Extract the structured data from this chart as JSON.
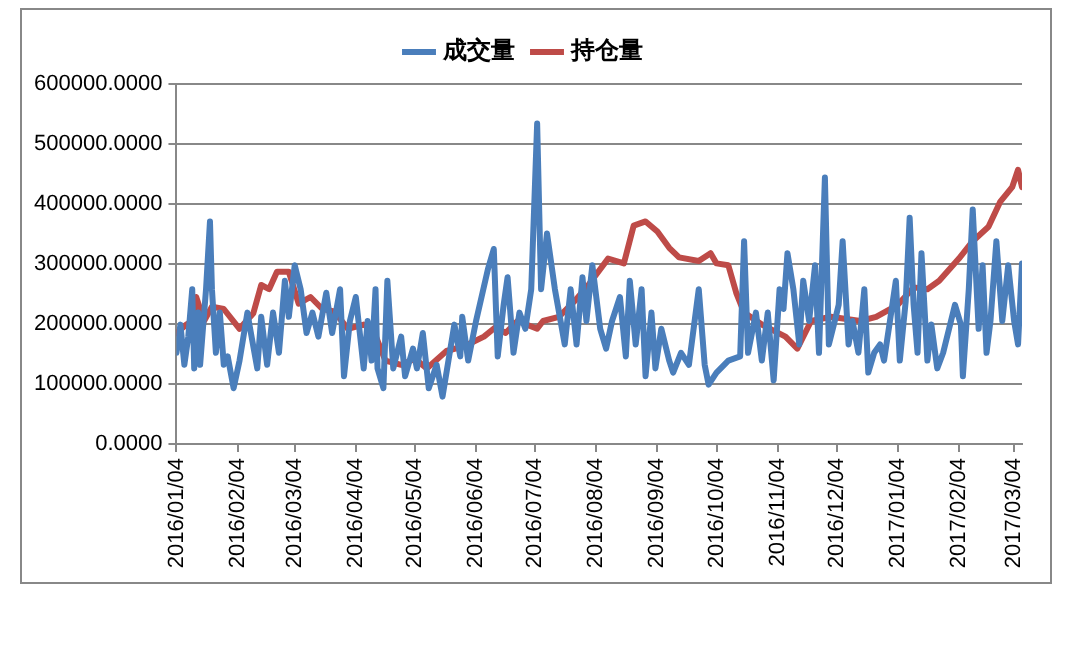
{
  "chart_data": {
    "type": "line",
    "ylim": [
      0,
      600000
    ],
    "yticks": [
      {
        "value": 0,
        "label": "0.0000"
      },
      {
        "value": 100000,
        "label": "100000.0000"
      },
      {
        "value": 200000,
        "label": "200000.0000"
      },
      {
        "value": 300000,
        "label": "300000.0000"
      },
      {
        "value": 400000,
        "label": "400000.0000"
      },
      {
        "value": 500000,
        "label": "500000.0000"
      },
      {
        "value": 600000,
        "label": "600000.0000"
      }
    ],
    "xlim": [
      "2016-01-04",
      "2017-03-08"
    ],
    "xticks": [
      {
        "value": "2016-01-04",
        "label": "2016/01/04"
      },
      {
        "value": "2016-02-04",
        "label": "2016/02/04"
      },
      {
        "value": "2016-03-04",
        "label": "2016/03/04"
      },
      {
        "value": "2016-04-04",
        "label": "2016/04/04"
      },
      {
        "value": "2016-05-04",
        "label": "2016/05/04"
      },
      {
        "value": "2016-06-04",
        "label": "2016/06/04"
      },
      {
        "value": "2016-07-04",
        "label": "2016/07/04"
      },
      {
        "value": "2016-08-04",
        "label": "2016/08/04"
      },
      {
        "value": "2016-09-04",
        "label": "2016/09/04"
      },
      {
        "value": "2016-10-04",
        "label": "2016/10/04"
      },
      {
        "value": "2016-11-04",
        "label": "2016/11/04"
      },
      {
        "value": "2016-12-04",
        "label": "2016/12/04"
      },
      {
        "value": "2017-01-04",
        "label": "2017/01/04"
      },
      {
        "value": "2017-02-04",
        "label": "2017/02/04"
      },
      {
        "value": "2017-03-04",
        "label": "2017/03/04"
      }
    ],
    "grid": "y",
    "legend": "top",
    "marker": "none",
    "line_style": "solid",
    "series": [
      {
        "name": "成交量",
        "color": "#4a7ebb",
        "x": [
          "2016-01-04",
          "2016-01-06",
          "2016-01-08",
          "2016-01-10",
          "2016-01-12",
          "2016-01-13",
          "2016-01-15",
          "2016-01-16",
          "2016-01-19",
          "2016-01-21",
          "2016-01-22",
          "2016-01-24",
          "2016-01-26",
          "2016-01-28",
          "2016-01-30",
          "2016-02-02",
          "2016-02-05",
          "2016-02-09",
          "2016-02-10",
          "2016-02-14",
          "2016-02-16",
          "2016-02-19",
          "2016-02-22",
          "2016-02-25",
          "2016-02-28",
          "2016-03-01",
          "2016-03-04",
          "2016-03-07",
          "2016-03-10",
          "2016-03-13",
          "2016-03-16",
          "2016-03-20",
          "2016-03-23",
          "2016-03-27",
          "2016-03-29",
          "2016-04-01",
          "2016-04-04",
          "2016-04-08",
          "2016-04-10",
          "2016-04-12",
          "2016-04-14",
          "2016-04-15",
          "2016-04-18",
          "2016-04-20",
          "2016-04-23",
          "2016-04-27",
          "2016-04-29",
          "2016-05-03",
          "2016-05-05",
          "2016-05-08",
          "2016-05-11",
          "2016-05-15",
          "2016-05-18",
          "2016-05-21",
          "2016-05-24",
          "2016-05-27",
          "2016-05-28",
          "2016-05-31",
          "2016-06-04",
          "2016-06-10",
          "2016-06-13",
          "2016-06-15",
          "2016-06-18",
          "2016-06-20",
          "2016-06-23",
          "2016-06-26",
          "2016-06-29",
          "2016-07-02",
          "2016-07-05",
          "2016-07-07",
          "2016-07-10",
          "2016-07-14",
          "2016-07-19",
          "2016-07-22",
          "2016-07-25",
          "2016-07-28",
          "2016-07-30",
          "2016-08-02",
          "2016-08-06",
          "2016-08-09",
          "2016-08-12",
          "2016-08-16",
          "2016-08-19",
          "2016-08-21",
          "2016-08-24",
          "2016-08-27",
          "2016-08-29",
          "2016-09-01",
          "2016-09-03",
          "2016-09-06",
          "2016-09-10",
          "2016-09-12",
          "2016-09-16",
          "2016-09-20",
          "2016-09-25",
          "2016-09-28",
          "2016-09-30",
          "2016-10-04",
          "2016-10-10",
          "2016-10-16",
          "2016-10-18",
          "2016-10-20",
          "2016-10-24",
          "2016-10-27",
          "2016-10-30",
          "2016-11-02",
          "2016-11-05",
          "2016-11-07",
          "2016-11-09",
          "2016-11-12",
          "2016-11-15",
          "2016-11-17",
          "2016-11-20",
          "2016-11-23",
          "2016-11-25",
          "2016-11-28",
          "2016-11-30",
          "2016-12-03",
          "2016-12-05",
          "2016-12-07",
          "2016-12-10",
          "2016-12-12",
          "2016-12-15",
          "2016-12-18",
          "2016-12-20",
          "2016-12-23",
          "2016-12-26",
          "2016-12-28",
          "2016-12-31",
          "2017-01-03",
          "2017-01-05",
          "2017-01-08",
          "2017-01-10",
          "2017-01-12",
          "2017-01-14",
          "2017-01-16",
          "2017-01-19",
          "2017-01-21",
          "2017-01-24",
          "2017-01-27",
          "2017-01-30",
          "2017-02-02",
          "2017-02-05",
          "2017-02-06",
          "2017-02-09",
          "2017-02-11",
          "2017-02-14",
          "2017-02-16",
          "2017-02-18",
          "2017-02-20",
          "2017-02-23",
          "2017-02-26",
          "2017-03-01",
          "2017-03-04",
          "2017-03-06",
          "2017-03-08"
        ],
        "values": [
          152000,
          199000,
          132000,
          179000,
          258000,
          126000,
          219000,
          132000,
          258000,
          371000,
          258000,
          152000,
          219000,
          132000,
          146000,
          93000,
          139000,
          219000,
          199000,
          126000,
          212000,
          132000,
          219000,
          152000,
          272000,
          212000,
          298000,
          258000,
          185000,
          219000,
          179000,
          252000,
          185000,
          258000,
          113000,
          205000,
          245000,
          126000,
          205000,
          139000,
          258000,
          126000,
          93000,
          272000,
          126000,
          179000,
          113000,
          159000,
          126000,
          185000,
          93000,
          132000,
          79000,
          139000,
          199000,
          146000,
          212000,
          139000,
          205000,
          291000,
          325000,
          146000,
          232000,
          278000,
          152000,
          219000,
          192000,
          258000,
          534000,
          258000,
          351000,
          258000,
          166000,
          258000,
          166000,
          278000,
          205000,
          298000,
          192000,
          159000,
          205000,
          245000,
          146000,
          272000,
          166000,
          258000,
          113000,
          219000,
          126000,
          192000,
          139000,
          119000,
          152000,
          132000,
          258000,
          132000,
          99000,
          119000,
          139000,
          146000,
          338000,
          152000,
          219000,
          139000,
          219000,
          106000,
          258000,
          225000,
          318000,
          258000,
          166000,
          272000,
          205000,
          298000,
          152000,
          444000,
          166000,
          205000,
          232000,
          338000,
          166000,
          205000,
          152000,
          258000,
          119000,
          152000,
          166000,
          139000,
          205000,
          272000,
          139000,
          238000,
          377000,
          232000,
          152000,
          318000,
          139000,
          199000,
          126000,
          152000,
          192000,
          232000,
          199000,
          113000,
          258000,
          391000,
          192000,
          298000,
          152000,
          205000,
          338000,
          205000,
          298000,
          205000,
          166000,
          301000
        ]
      },
      {
        "name": "持仓量",
        "color": "#be4b48",
        "x": [
          "2016-01-04",
          "2016-01-09",
          "2016-01-12",
          "2016-01-14",
          "2016-01-18",
          "2016-01-22",
          "2016-01-28",
          "2016-02-05",
          "2016-02-12",
          "2016-02-16",
          "2016-02-20",
          "2016-02-24",
          "2016-03-01",
          "2016-03-06",
          "2016-03-12",
          "2016-03-18",
          "2016-03-24",
          "2016-03-31",
          "2016-04-08",
          "2016-04-13",
          "2016-04-19",
          "2016-04-27",
          "2016-05-04",
          "2016-05-10",
          "2016-05-20",
          "2016-05-29",
          "2016-06-08",
          "2016-06-14",
          "2016-06-19",
          "2016-06-25",
          "2016-07-05",
          "2016-07-08",
          "2016-07-16",
          "2016-07-24",
          "2016-07-31",
          "2016-08-10",
          "2016-08-18",
          "2016-08-23",
          "2016-08-29",
          "2016-09-04",
          "2016-09-10",
          "2016-09-15",
          "2016-09-25",
          "2016-10-01",
          "2016-10-04",
          "2016-10-10",
          "2016-10-14",
          "2016-10-18",
          "2016-10-27",
          "2016-11-08",
          "2016-11-14",
          "2016-11-21",
          "2016-12-01",
          "2016-12-16",
          "2016-12-24",
          "2017-01-04",
          "2017-01-12",
          "2017-01-19",
          "2017-01-25",
          "2017-02-04",
          "2017-02-11",
          "2017-02-19",
          "2017-02-25",
          "2017-03-03",
          "2017-03-06",
          "2017-03-08"
        ],
        "values": [
          185000,
          199000,
          205000,
          245000,
          205000,
          229000,
          225000,
          192000,
          218000,
          265000,
          258000,
          287000,
          287000,
          234000,
          245000,
          225000,
          221000,
          192000,
          199000,
          189000,
          139000,
          132000,
          142000,
          126000,
          155000,
          163000,
          179000,
          195000,
          185000,
          205000,
          192000,
          205000,
          212000,
          238000,
          265000,
          309000,
          301000,
          364000,
          371000,
          354000,
          327000,
          311000,
          305000,
          318000,
          301000,
          298000,
          252000,
          219000,
          199000,
          179000,
          159000,
          205000,
          212000,
          205000,
          212000,
          232000,
          261000,
          258000,
          272000,
          309000,
          338000,
          362000,
          404000,
          428000,
          457000,
          428000
        ]
      }
    ]
  }
}
